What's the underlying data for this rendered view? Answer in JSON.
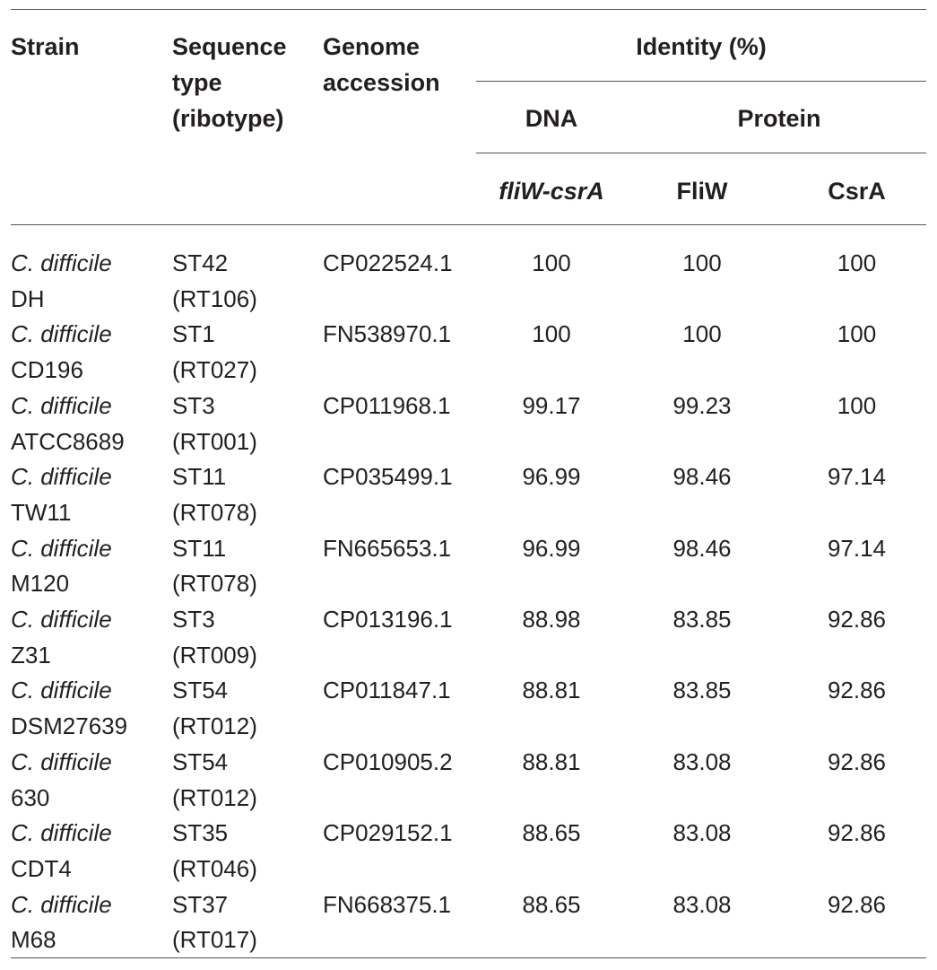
{
  "table": {
    "headers": {
      "strain": "Strain",
      "sequence_type": [
        "Sequence",
        "type",
        "(ribotype)"
      ],
      "genome_accession": [
        "Genome",
        "accession"
      ],
      "identity": "Identity (%)",
      "dna": "DNA",
      "protein": "Protein",
      "flw_csra": "fliW-csrA",
      "fliw": "FliW",
      "csra": "CsrA"
    },
    "rows": [
      {
        "species": "C. difficile",
        "strain": "DH",
        "st": "ST42",
        "rt": "(RT106)",
        "accession": "CP022524.1",
        "dna": "100",
        "fliw": "100",
        "csra": "100"
      },
      {
        "species": "C. difficile",
        "strain": "CD196",
        "st": "ST1",
        "rt": "(RT027)",
        "accession": "FN538970.1",
        "dna": "100",
        "fliw": "100",
        "csra": "100"
      },
      {
        "species": "C. difficile",
        "strain": "ATCC8689",
        "st": "ST3",
        "rt": "(RT001)",
        "accession": "CP011968.1",
        "dna": "99.17",
        "fliw": "99.23",
        "csra": "100"
      },
      {
        "species": "C. difficile",
        "strain": "TW11",
        "st": "ST11",
        "rt": "(RT078)",
        "accession": "CP035499.1",
        "dna": "96.99",
        "fliw": "98.46",
        "csra": "97.14"
      },
      {
        "species": "C. difficile",
        "strain": "M120",
        "st": "ST11",
        "rt": "(RT078)",
        "accession": "FN665653.1",
        "dna": "96.99",
        "fliw": "98.46",
        "csra": "97.14"
      },
      {
        "species": "C. difficile",
        "strain": "Z31",
        "st": "ST3",
        "rt": "(RT009)",
        "accession": "CP013196.1",
        "dna": "88.98",
        "fliw": "83.85",
        "csra": "92.86"
      },
      {
        "species": "C. difficile",
        "strain": "DSM27639",
        "st": "ST54",
        "rt": "(RT012)",
        "accession": "CP011847.1",
        "dna": "88.81",
        "fliw": "83.85",
        "csra": "92.86"
      },
      {
        "species": "C. difficile",
        "strain": "630",
        "st": "ST54",
        "rt": "(RT012)",
        "accession": "CP010905.2",
        "dna": "88.81",
        "fliw": "83.08",
        "csra": "92.86"
      },
      {
        "species": "C. difficile",
        "strain": "CDT4",
        "st": "ST35",
        "rt": "(RT046)",
        "accession": "CP029152.1",
        "dna": "88.65",
        "fliw": "83.08",
        "csra": "92.86"
      },
      {
        "species": "C. difficile",
        "strain": "M68",
        "st": "ST37",
        "rt": "(RT017)",
        "accession": "FN668375.1",
        "dna": "88.65",
        "fliw": "83.08",
        "csra": "92.86"
      }
    ]
  }
}
